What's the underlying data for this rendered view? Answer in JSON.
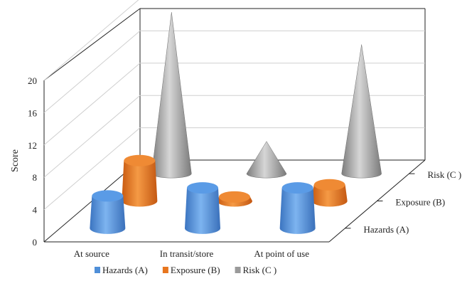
{
  "chart_data": {
    "type": "bar",
    "style": "3d-cone-cylinder",
    "title": "",
    "ylabel": "Score",
    "ylim": [
      0,
      20
    ],
    "yticks": [
      "0",
      "4",
      "8",
      "12",
      "16",
      "20"
    ],
    "categories": [
      "At source",
      "In transit/store",
      "At point of use"
    ],
    "series": [
      {
        "name": "Hazards (A)",
        "color": "#4f8fd8",
        "shape": "cylinder",
        "values": [
          4,
          5,
          5
        ]
      },
      {
        "name": "Exposure  (B)",
        "color": "#e8761e",
        "shape": "cylinder",
        "values": [
          5,
          0.5,
          2
        ]
      },
      {
        "name": "Risk (C )",
        "color": "#9a9a9a",
        "shape": "cone",
        "values": [
          20,
          4,
          16
        ]
      }
    ],
    "depth_labels": [
      "Hazards (A)",
      "Exposure  (B)",
      "Risk (C )"
    ],
    "legend": {
      "position": "bottom"
    },
    "grid": true
  }
}
